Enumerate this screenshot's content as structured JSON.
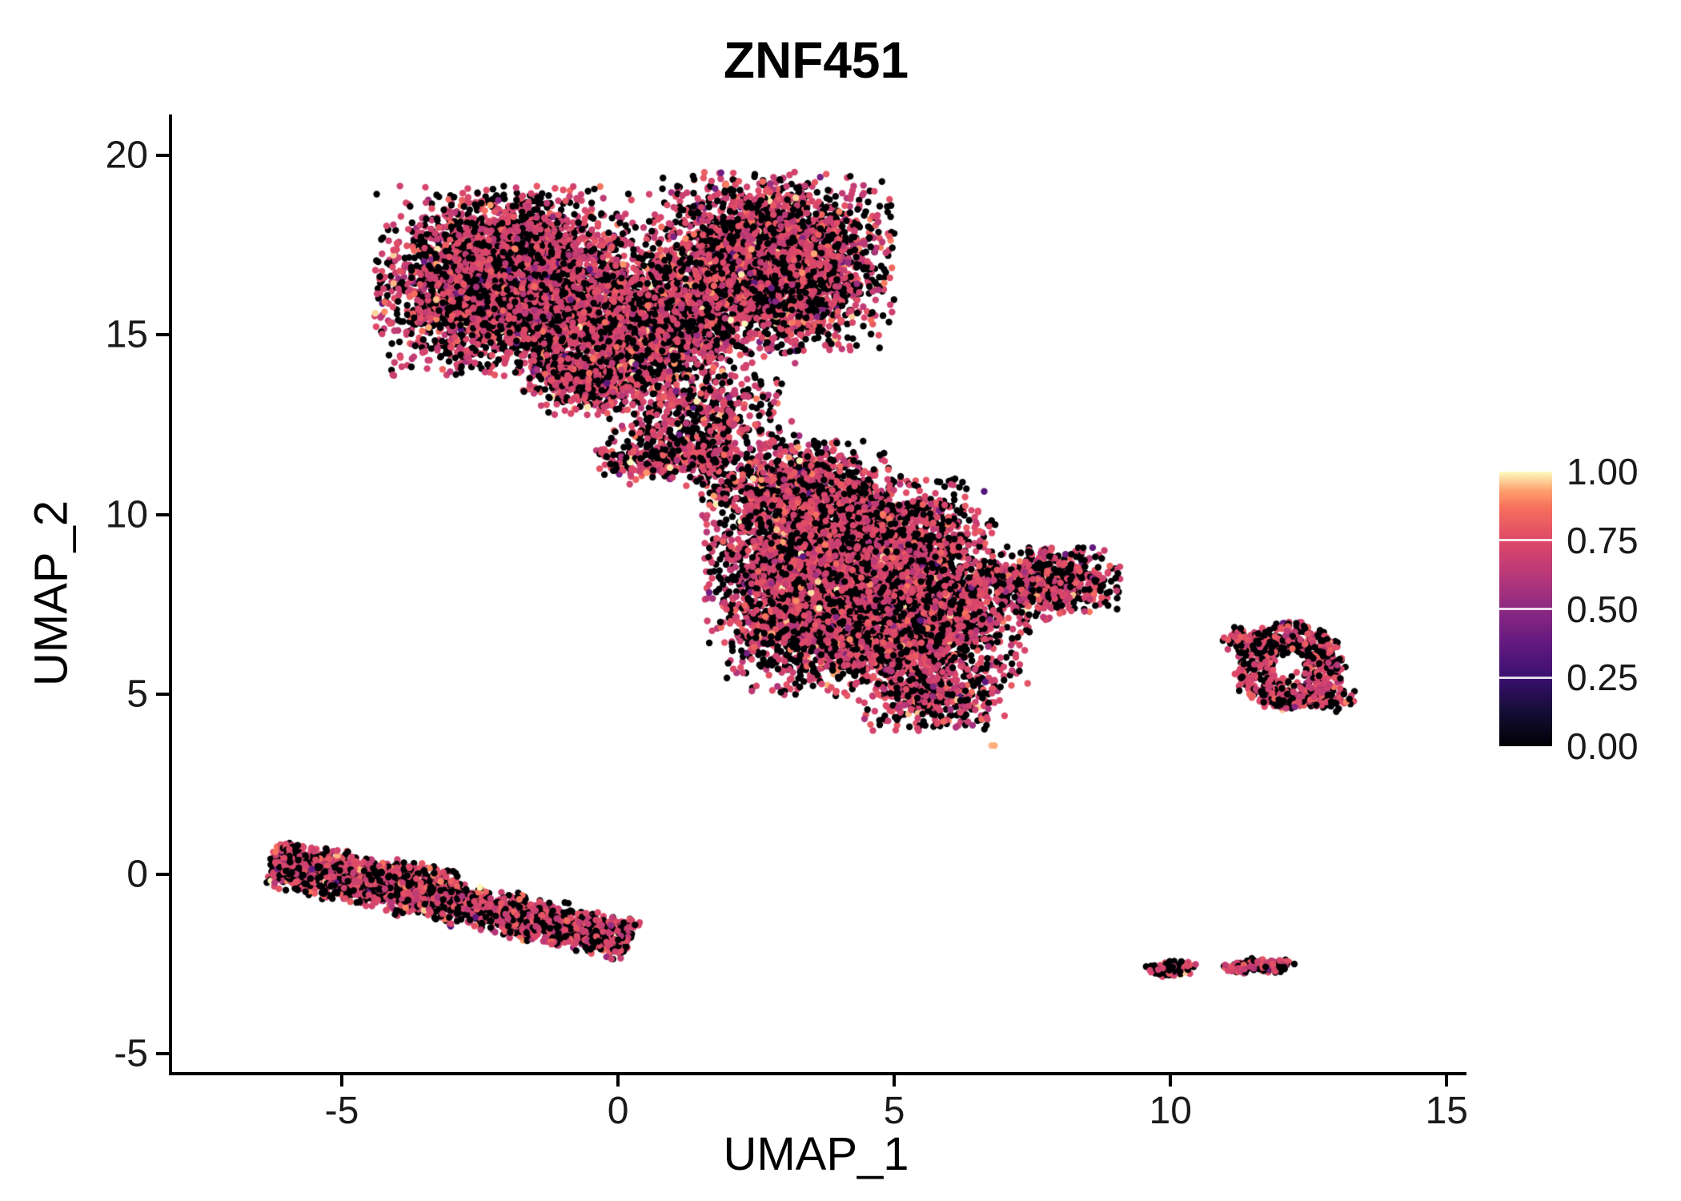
{
  "title": "ZNF451",
  "axes": {
    "x_label": "UMAP_1",
    "y_label": "UMAP_2",
    "x_ticks": [
      {
        "label": "-5",
        "value": -5
      },
      {
        "label": "0",
        "value": 0
      },
      {
        "label": "5",
        "value": 5
      },
      {
        "label": "10",
        "value": 10
      },
      {
        "label": "15",
        "value": 15
      }
    ],
    "y_ticks": [
      {
        "label": "20",
        "value": 20
      },
      {
        "label": "15",
        "value": 15
      },
      {
        "label": "10",
        "value": 10
      },
      {
        "label": "5",
        "value": 5
      },
      {
        "label": "0",
        "value": 0
      },
      {
        "label": "-5",
        "value": -5
      }
    ]
  },
  "colorbar": {
    "labels": [
      {
        "label": "1.00",
        "value": 1.0
      },
      {
        "label": "0.75",
        "value": 0.75
      },
      {
        "label": "0.50",
        "value": 0.5
      },
      {
        "label": "0.25",
        "value": 0.25
      },
      {
        "label": "0.00",
        "value": 0.0
      }
    ],
    "colormap": [
      [
        0.0,
        "#000004"
      ],
      [
        0.13,
        "#150E38"
      ],
      [
        0.25,
        "#3B0F70"
      ],
      [
        0.38,
        "#651A80"
      ],
      [
        0.5,
        "#8C2981"
      ],
      [
        0.62,
        "#B73779"
      ],
      [
        0.75,
        "#DE4968"
      ],
      [
        0.87,
        "#F7705C"
      ],
      [
        0.93,
        "#FE9F6D"
      ],
      [
        1.0,
        "#FCFDBF"
      ]
    ]
  },
  "chart_data": {
    "type": "scatter",
    "title": "ZNF451",
    "xlabel": "UMAP_1",
    "ylabel": "UMAP_2",
    "xlim": [
      -8.13,
      15.3
    ],
    "ylim": [
      -5.51,
      21.13
    ],
    "legend_position": "right",
    "grid": false,
    "point_radius_px": 4.2,
    "seed": 42,
    "value_mixture": [
      {
        "w": 0.43,
        "type": "const",
        "v": 0.0
      },
      {
        "w": 0.515,
        "type": "normal",
        "mean": 0.72,
        "sd": 0.05
      },
      {
        "w": 0.035,
        "type": "uniform",
        "lo": 0.82,
        "hi": 1.0
      },
      {
        "w": 0.02,
        "type": "uniform",
        "lo": 0.3,
        "hi": 0.6
      }
    ],
    "clusters": [
      {
        "name": "upper-left-lobe",
        "shape": "gauss",
        "n": 3800,
        "cx": -2.0,
        "cy": 16.5,
        "sx": 1.05,
        "sy": 1.15
      },
      {
        "name": "upper-right-lobe",
        "shape": "gauss",
        "n": 3600,
        "cx": 2.7,
        "cy": 17.0,
        "sx": 1.0,
        "sy": 1.1
      },
      {
        "name": "upper-mid-fill",
        "shape": "gauss",
        "n": 1600,
        "cx": 0.5,
        "cy": 15.2,
        "sx": 0.95,
        "sy": 0.95
      },
      {
        "name": "upper-lower-bump",
        "shape": "gauss",
        "n": 500,
        "cx": -0.5,
        "cy": 13.9,
        "sx": 0.6,
        "sy": 0.5
      },
      {
        "name": "bridge",
        "shape": "gauss",
        "n": 600,
        "cx": 1.5,
        "cy": 12.5,
        "sx": 0.8,
        "sy": 0.8
      },
      {
        "name": "neck",
        "shape": "gauss",
        "n": 280,
        "cx": 0.9,
        "cy": 11.6,
        "sx": 0.6,
        "sy": 0.28
      },
      {
        "name": "center-upper",
        "shape": "gauss",
        "n": 4000,
        "cx": 4.2,
        "cy": 8.7,
        "sx": 1.15,
        "sy": 1.0
      },
      {
        "name": "center-lower",
        "shape": "gauss",
        "n": 3000,
        "cx": 4.7,
        "cy": 6.9,
        "sx": 1.2,
        "sy": 0.85
      },
      {
        "name": "center-right-tail",
        "shape": "gauss",
        "n": 650,
        "cx": 7.7,
        "cy": 8.1,
        "sx": 0.62,
        "sy": 0.45
      },
      {
        "name": "center-top",
        "shape": "gauss",
        "n": 900,
        "cx": 3.3,
        "cy": 10.7,
        "sx": 0.8,
        "sy": 0.6
      },
      {
        "name": "center-bottom-tip",
        "shape": "gauss",
        "n": 380,
        "cx": 5.7,
        "cy": 4.9,
        "sx": 0.6,
        "sy": 0.42
      },
      {
        "name": "right-ring",
        "shape": "ring",
        "n": 620,
        "cx": 12.15,
        "cy": 5.8,
        "rx": 0.95,
        "ry": 1.2,
        "hole": 0.32
      },
      {
        "name": "right-ring-topleft",
        "shape": "gauss",
        "n": 70,
        "cx": 11.35,
        "cy": 6.55,
        "sx": 0.18,
        "sy": 0.14
      },
      {
        "name": "right-ring-bottom",
        "shape": "gauss",
        "n": 90,
        "cx": 12.85,
        "cy": 4.85,
        "sx": 0.22,
        "sy": 0.18
      },
      {
        "name": "lower-left-band",
        "shape": "band",
        "n": 2400,
        "x0": -6.2,
        "y0": 0.25,
        "x1": 0.2,
        "y1": -1.85,
        "w": 0.55
      },
      {
        "name": "lower-left-band-thick",
        "shape": "band",
        "n": 900,
        "x0": -6.25,
        "y0": 0.45,
        "x1": -3.0,
        "y1": -0.45,
        "w": 0.5
      },
      {
        "name": "bottom-small-left",
        "shape": "gauss",
        "n": 130,
        "cx": 10.0,
        "cy": -2.65,
        "sx": 0.2,
        "sy": 0.1
      },
      {
        "name": "bottom-small-right-a",
        "shape": "gauss",
        "n": 90,
        "cx": 11.25,
        "cy": -2.6,
        "sx": 0.13,
        "sy": 0.08
      },
      {
        "name": "bottom-small-right-b",
        "shape": "gauss",
        "n": 110,
        "cx": 11.8,
        "cy": -2.55,
        "sx": 0.2,
        "sy": 0.09
      },
      {
        "name": "isolated-dot",
        "shape": "gauss",
        "n": 2,
        "cx": 6.75,
        "cy": 3.6,
        "sx": 0.05,
        "sy": 0.05,
        "bias": "high"
      }
    ]
  }
}
